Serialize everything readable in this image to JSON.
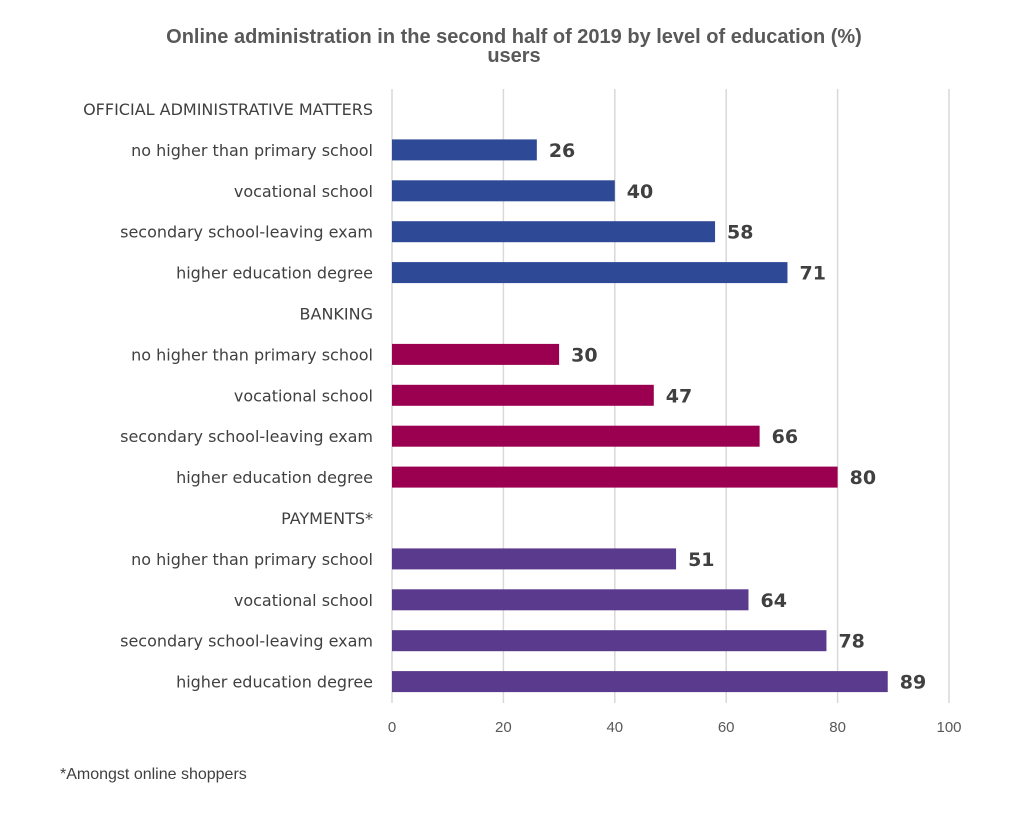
{
  "chart_data": {
    "type": "bar",
    "orientation": "horizontal",
    "title": "Online administration in the second half of 2019 by level of education (%)",
    "subtitle": "users",
    "xlim": [
      0,
      100
    ],
    "x_ticks": [
      0,
      20,
      40,
      60,
      80,
      100
    ],
    "grid": true,
    "footnote": "*Amongst online shoppers",
    "groups": [
      {
        "name": "OFFICIAL ADMINISTRATIVE MATTERS",
        "color": "#2e4a96",
        "categories": [
          "no higher than primary school",
          "vocational school",
          "secondary school-leaving exam",
          "higher education degree"
        ],
        "values": [
          26,
          40,
          58,
          71
        ]
      },
      {
        "name": "BANKING",
        "color": "#9b0050",
        "categories": [
          "no higher than primary school",
          "vocational school",
          "secondary school-leaving exam",
          "higher education degree"
        ],
        "values": [
          30,
          47,
          66,
          80
        ]
      },
      {
        "name": "PAYMENTS*",
        "color": "#5a3a8c",
        "categories": [
          "no higher than primary school",
          "vocational school",
          "secondary school-leaving exam",
          "higher education degree"
        ],
        "values": [
          51,
          64,
          78,
          89
        ]
      }
    ]
  }
}
